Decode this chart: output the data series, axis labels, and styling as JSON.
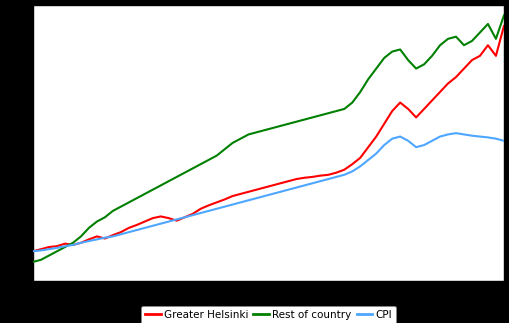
{
  "title": "",
  "legend_labels": [
    "Greater Helsinki",
    "Rest of country",
    "CPI"
  ],
  "legend_colors": [
    "#ff0000",
    "#008000",
    "#4da6ff"
  ],
  "line_width": 1.5,
  "background_color": "#000000",
  "plot_bg_color": "#ffffff",
  "grid_color": "#000000",
  "grid_linestyle": "--",
  "n_grid_lines": 13,
  "greater_helsinki": [
    100.0,
    100.5,
    101.0,
    101.2,
    101.8,
    101.5,
    102.0,
    102.8,
    103.5,
    103.0,
    103.8,
    104.5,
    105.5,
    106.2,
    107.0,
    107.8,
    108.2,
    107.8,
    107.2,
    108.0,
    108.8,
    110.0,
    110.8,
    111.5,
    112.2,
    113.0,
    113.5,
    114.0,
    114.5,
    115.0,
    115.5,
    116.0,
    116.5,
    117.0,
    117.3,
    117.5,
    117.8,
    118.0,
    118.5,
    119.2,
    120.5,
    122.0,
    124.5,
    127.0,
    130.0,
    133.0,
    135.0,
    133.5,
    131.5,
    133.5,
    135.5,
    137.5,
    139.5,
    141.0,
    143.0,
    145.0,
    146.0,
    148.5,
    146.0,
    153.0
  ],
  "rest_of_country": [
    97.5,
    98.0,
    99.0,
    100.0,
    101.0,
    102.0,
    103.5,
    105.5,
    107.0,
    108.0,
    109.5,
    110.5,
    111.5,
    112.5,
    113.5,
    114.5,
    115.5,
    116.5,
    117.5,
    118.5,
    119.5,
    120.5,
    121.5,
    122.5,
    124.0,
    125.5,
    126.5,
    127.5,
    128.0,
    128.5,
    129.0,
    129.5,
    130.0,
    130.5,
    131.0,
    131.5,
    132.0,
    132.5,
    133.0,
    133.5,
    135.0,
    137.5,
    140.5,
    143.0,
    145.5,
    147.0,
    147.5,
    145.0,
    143.0,
    144.0,
    146.0,
    148.5,
    150.0,
    150.5,
    148.5,
    149.5,
    151.5,
    153.5,
    150.0,
    155.5
  ],
  "cpi": [
    100.0,
    100.2,
    100.5,
    100.8,
    101.2,
    101.5,
    102.0,
    102.4,
    102.8,
    103.2,
    103.5,
    104.0,
    104.5,
    105.0,
    105.5,
    106.0,
    106.5,
    107.0,
    107.5,
    108.0,
    108.5,
    109.0,
    109.5,
    110.0,
    110.5,
    111.0,
    111.5,
    112.0,
    112.5,
    113.0,
    113.5,
    114.0,
    114.5,
    115.0,
    115.5,
    116.0,
    116.5,
    117.0,
    117.5,
    118.0,
    118.8,
    120.0,
    121.5,
    123.0,
    125.0,
    126.5,
    127.0,
    126.0,
    124.5,
    125.0,
    126.0,
    127.0,
    127.5,
    127.8,
    127.5,
    127.2,
    127.0,
    126.8,
    126.5,
    126.0
  ],
  "ylim_min": 93,
  "ylim_max": 158,
  "grid_linewidth": 0.5,
  "spine_linewidth": 1.0,
  "outer_bg": "#000000"
}
